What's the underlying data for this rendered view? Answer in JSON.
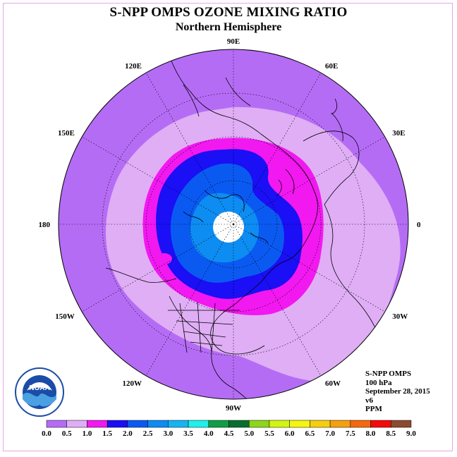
{
  "title": "S-NPP OMPS OZONE MIXING RATIO",
  "subtitle": "Northern Hemisphere",
  "longitude_labels": [
    {
      "text": "90E",
      "lon": 90
    },
    {
      "text": "60E",
      "lon": 60
    },
    {
      "text": "30E",
      "lon": 30
    },
    {
      "text": "0",
      "lon": 0
    },
    {
      "text": "30W",
      "lon": -30
    },
    {
      "text": "60W",
      "lon": -60
    },
    {
      "text": "90W",
      "lon": -90
    },
    {
      "text": "120W",
      "lon": -120
    },
    {
      "text": "150W",
      "lon": -150
    },
    {
      "text": "180",
      "lon": 180
    },
    {
      "text": "150E",
      "lon": 150
    },
    {
      "text": "120E",
      "lon": 120
    }
  ],
  "info": {
    "instrument": "S-NPP OMPS",
    "level": "100 hPa",
    "date": "September 28, 2015",
    "version": "v6",
    "units": "PPM"
  },
  "logo_text": "NOAA",
  "colorbar": {
    "ticks": [
      "0.0",
      "0.5",
      "1.0",
      "1.5",
      "2.0",
      "2.5",
      "3.0",
      "3.5",
      "4.0",
      "4.5",
      "5.0",
      "5.5",
      "6.0",
      "6.5",
      "7.0",
      "7.5",
      "8.0",
      "8.5",
      "9.0"
    ],
    "colors": [
      "#b56cf5",
      "#dfaef5",
      "#f218f0",
      "#1a0ff5",
      "#0a5af2",
      "#0d8cf2",
      "#17b4f2",
      "#1ef0ea",
      "#0e9e44",
      "#0a6e2c",
      "#8ed61c",
      "#d2f512",
      "#f5f50f",
      "#f5ce0e",
      "#f5a00e",
      "#f5680e",
      "#f50a0a",
      "#8c4a32"
    ]
  },
  "color_roles": {
    "background_low": "#b56cf5",
    "ring_0p5": "#dfaef5",
    "ring_1p0": "#f218f0",
    "ring_1p5": "#1a0ff5",
    "ring_2p0": "#0a5af2",
    "ring_2p5": "#0d8cf2",
    "no_data_center": "#ffffff"
  }
}
